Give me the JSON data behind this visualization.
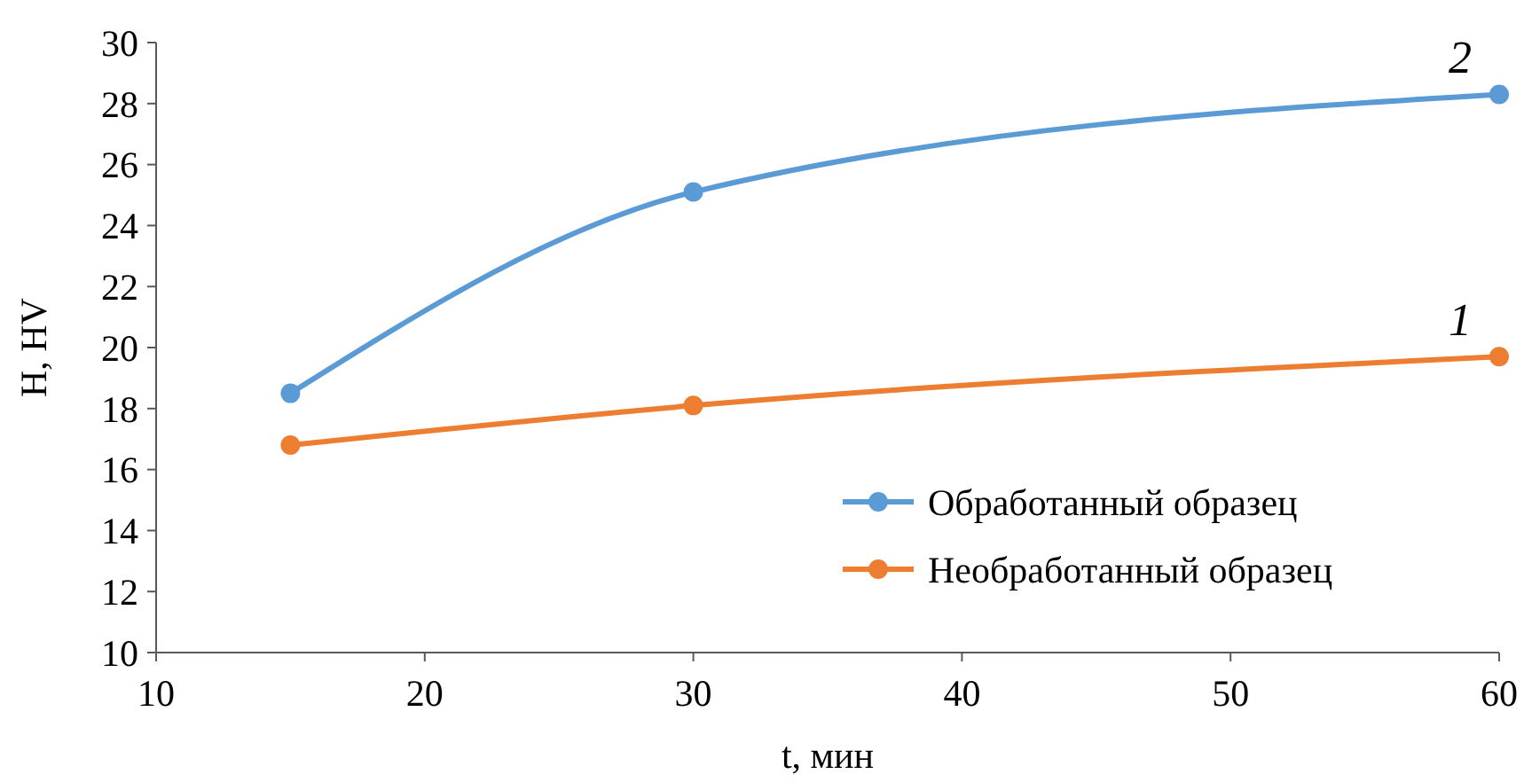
{
  "chart_data": {
    "type": "line",
    "xlabel": "t, мин",
    "ylabel": "H, HV",
    "x": [
      15,
      30,
      60
    ],
    "series": [
      {
        "name": "Обработанный образец",
        "color": "#5b9bd5",
        "values": [
          18.5,
          25.1,
          28.3
        ]
      },
      {
        "name": "Необработанный образец",
        "color": "#ed7d31",
        "values": [
          16.8,
          18.1,
          19.7
        ]
      }
    ],
    "xlim": [
      10,
      60
    ],
    "xticks": [
      10,
      20,
      30,
      40,
      50,
      60
    ],
    "ylim": [
      10,
      30
    ],
    "yticks": [
      10,
      12,
      14,
      16,
      18,
      20,
      22,
      24,
      26,
      28,
      30
    ],
    "annotations": [
      "2",
      "1"
    ],
    "grid": false,
    "legend": "bottom right",
    "marker": "circle",
    "line_style": "solid"
  }
}
